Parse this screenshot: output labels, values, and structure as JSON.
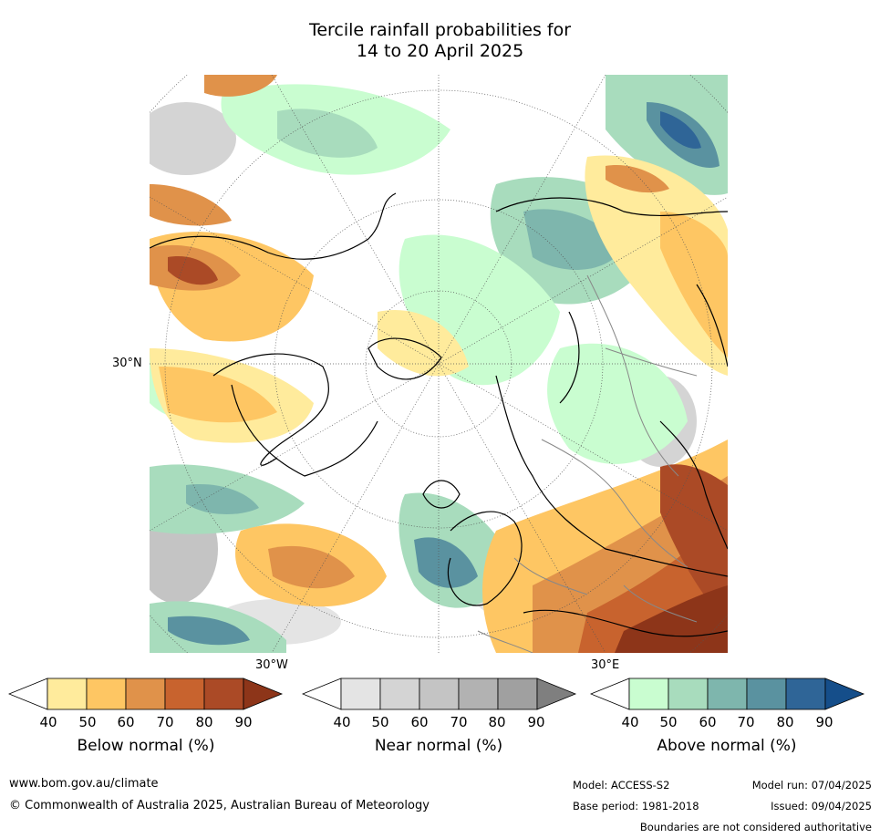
{
  "title": {
    "line1": "Tercile rainfall probabilities for",
    "line2": "14 to 20 April 2025"
  },
  "map": {
    "lat_label": "30°N",
    "lon_label_w": "30°W",
    "lon_label_e": "30°E",
    "colors": {
      "below": [
        "#ffffff",
        "#ffeb9c",
        "#fec663",
        "#e0924a",
        "#c8632e",
        "#ab4a26",
        "#8d3519"
      ],
      "near": [
        "#ffffff",
        "#e4e4e4",
        "#d4d4d4",
        "#c4c4c4",
        "#b2b2b2",
        "#a0a0a0",
        "#7f7f7f"
      ],
      "above": [
        "#ffffff",
        "#c9fdd0",
        "#a8dcbd",
        "#7eb6ad",
        "#5a92a0",
        "#2f6597",
        "#154e8a"
      ]
    }
  },
  "colorbars": [
    {
      "name": "below",
      "title": "Below normal (%)",
      "ticks": [
        "40",
        "50",
        "60",
        "70",
        "80",
        "90"
      ]
    },
    {
      "name": "near",
      "title": "Near normal (%)",
      "ticks": [
        "40",
        "50",
        "60",
        "70",
        "80",
        "90"
      ]
    },
    {
      "name": "above",
      "title": "Above normal (%)",
      "ticks": [
        "40",
        "50",
        "60",
        "70",
        "80",
        "90"
      ]
    }
  ],
  "footer": {
    "website": "www.bom.gov.au/climate",
    "copyright": "© Commonwealth of Australia 2025, Australian Bureau of Meteorology",
    "model": "Model: ACCESS-S2",
    "base_period": "Base period: 1981-2018",
    "model_run": "Model run: 07/04/2025",
    "issued": "Issued: 09/04/2025",
    "disclaimer": "Boundaries are not considered authoritative"
  }
}
